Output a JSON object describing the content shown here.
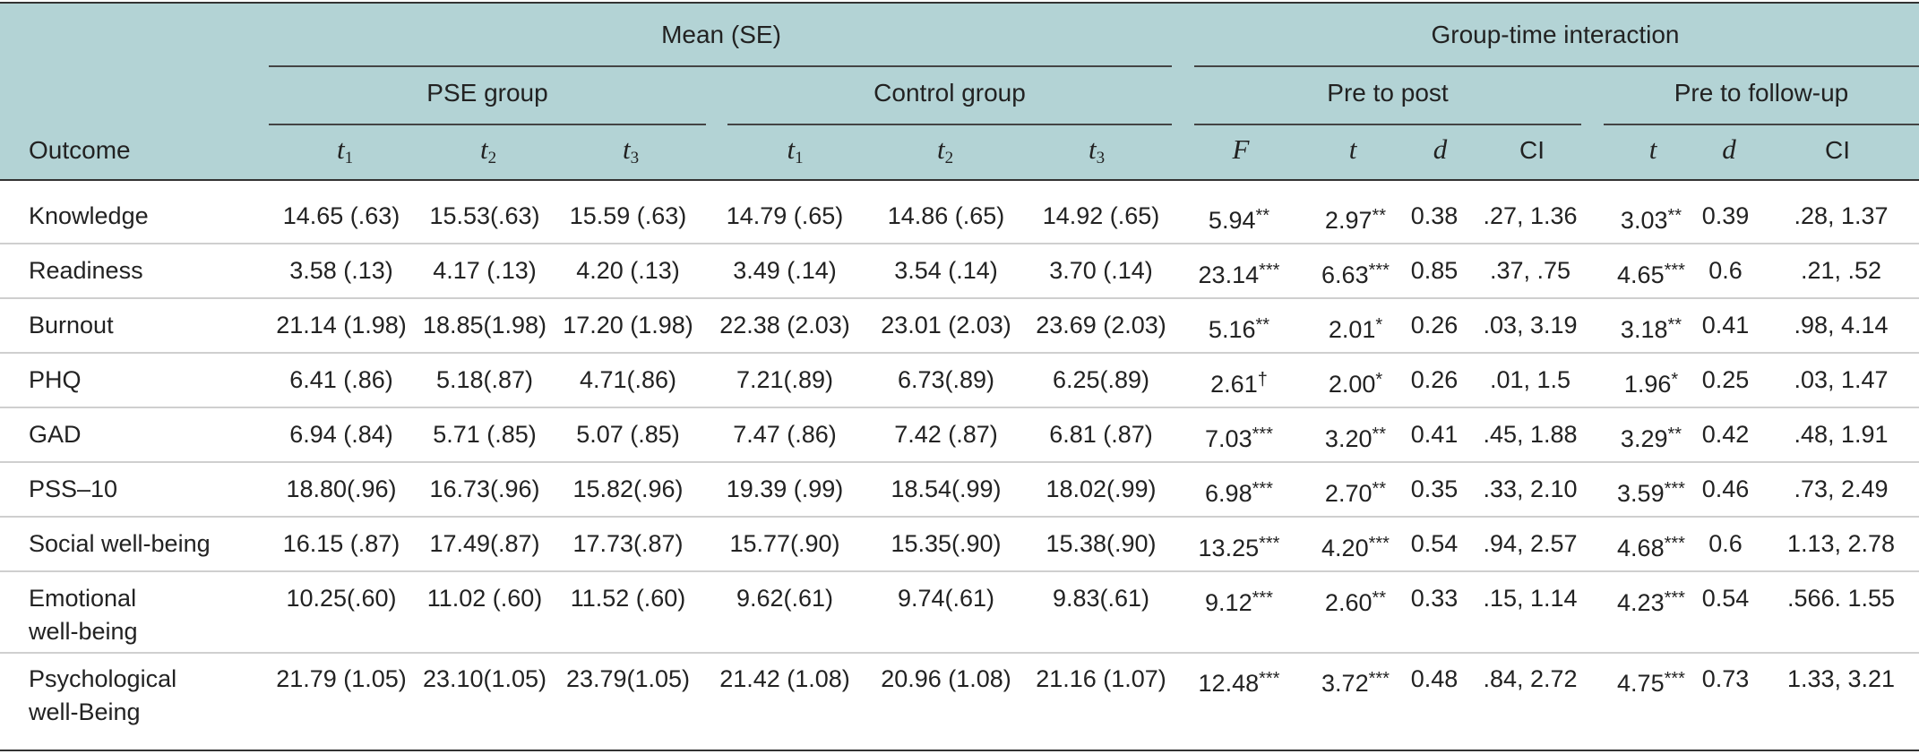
{
  "header": {
    "mean_se": "Mean (SE)",
    "interaction": "Group-time interaction",
    "pse_group": "PSE group",
    "control_group": "Control group",
    "pre_post": "Pre to post",
    "pre_followup": "Pre to follow-up",
    "outcome": "Outcome",
    "t_symbol": "t",
    "t1_sub": "1",
    "t2_sub": "2",
    "t3_sub": "3",
    "F": "F",
    "d": "d",
    "CI": "CI"
  },
  "rows": [
    {
      "label": [
        "Knowledge"
      ],
      "cells": [
        "14.65 (.63)",
        "15.53(.63)",
        "15.59 (.63)",
        "14.79 (.65)",
        "14.86 (.65)",
        "14.92 (.65)",
        "5.94**",
        "2.97**",
        "0.38",
        ".27, 1.36",
        "3.03**",
        "0.39",
        ".28, 1.37"
      ]
    },
    {
      "label": [
        "Readiness"
      ],
      "cells": [
        "3.58 (.13)",
        "4.17 (.13)",
        "4.20 (.13)",
        "3.49 (.14)",
        "3.54 (.14)",
        "3.70 (.14)",
        "23.14***",
        "6.63***",
        "0.85",
        ".37, .75",
        "4.65***",
        "0.6",
        ".21, .52"
      ]
    },
    {
      "label": [
        "Burnout"
      ],
      "cells": [
        "21.14 (1.98)",
        "18.85(1.98)",
        "17.20 (1.98)",
        "22.38 (2.03)",
        "23.01 (2.03)",
        "23.69 (2.03)",
        "5.16**",
        "2.01*",
        "0.26",
        ".03, 3.19",
        "3.18**",
        "0.41",
        ".98, 4.14"
      ]
    },
    {
      "label": [
        "PHQ"
      ],
      "cells": [
        "6.41 (.86)",
        "5.18(.87)",
        "4.71(.86)",
        "7.21(.89)",
        "6.73(.89)",
        "6.25(.89)",
        "2.61†",
        "2.00*",
        "0.26",
        ".01, 1.5",
        "1.96*",
        "0.25",
        ".03, 1.47"
      ]
    },
    {
      "label": [
        "GAD"
      ],
      "cells": [
        "6.94 (.84)",
        "5.71 (.85)",
        "5.07 (.85)",
        "7.47 (.86)",
        "7.42 (.87)",
        "6.81 (.87)",
        "7.03***",
        "3.20**",
        "0.41",
        ".45, 1.88",
        "3.29**",
        "0.42",
        ".48, 1.91"
      ]
    },
    {
      "label": [
        "PSS–10"
      ],
      "cells": [
        "18.80(.96)",
        "16.73(.96)",
        "15.82(.96)",
        "19.39 (.99)",
        "18.54(.99)",
        "18.02(.99)",
        "6.98***",
        "2.70**",
        "0.35",
        ".33, 2.10",
        "3.59***",
        "0.46",
        ".73, 2.49"
      ]
    },
    {
      "label": [
        "Social well-being"
      ],
      "cells": [
        "16.15 (.87)",
        "17.49(.87)",
        "17.73(.87)",
        "15.77(.90)",
        "15.35(.90)",
        "15.38(.90)",
        "13.25***",
        "4.20***",
        "0.54",
        ".94, 2.57",
        "4.68***",
        "0.6",
        "1.13, 2.78"
      ]
    },
    {
      "label": [
        "Emotional",
        "well-being"
      ],
      "cells": [
        "10.25(.60)",
        "11.02 (.60)",
        "11.52 (.60)",
        "9.62(.61)",
        "9.74(.61)",
        "9.83(.61)",
        "9.12***",
        "2.60**",
        "0.33",
        ".15, 1.14",
        "4.23***",
        "0.54",
        ".566. 1.55"
      ]
    },
    {
      "label": [
        "Psychological",
        "well-Being"
      ],
      "cells": [
        "21.79 (1.05)",
        "23.10(1.05)",
        "23.79(1.05)",
        "21.42 (1.08)",
        "20.96 (1.08)",
        "21.16 (1.07)",
        "12.48***",
        "3.72***",
        "0.48",
        ".84, 2.72",
        "4.75***",
        "0.73",
        "1.33, 3.21"
      ]
    }
  ]
}
